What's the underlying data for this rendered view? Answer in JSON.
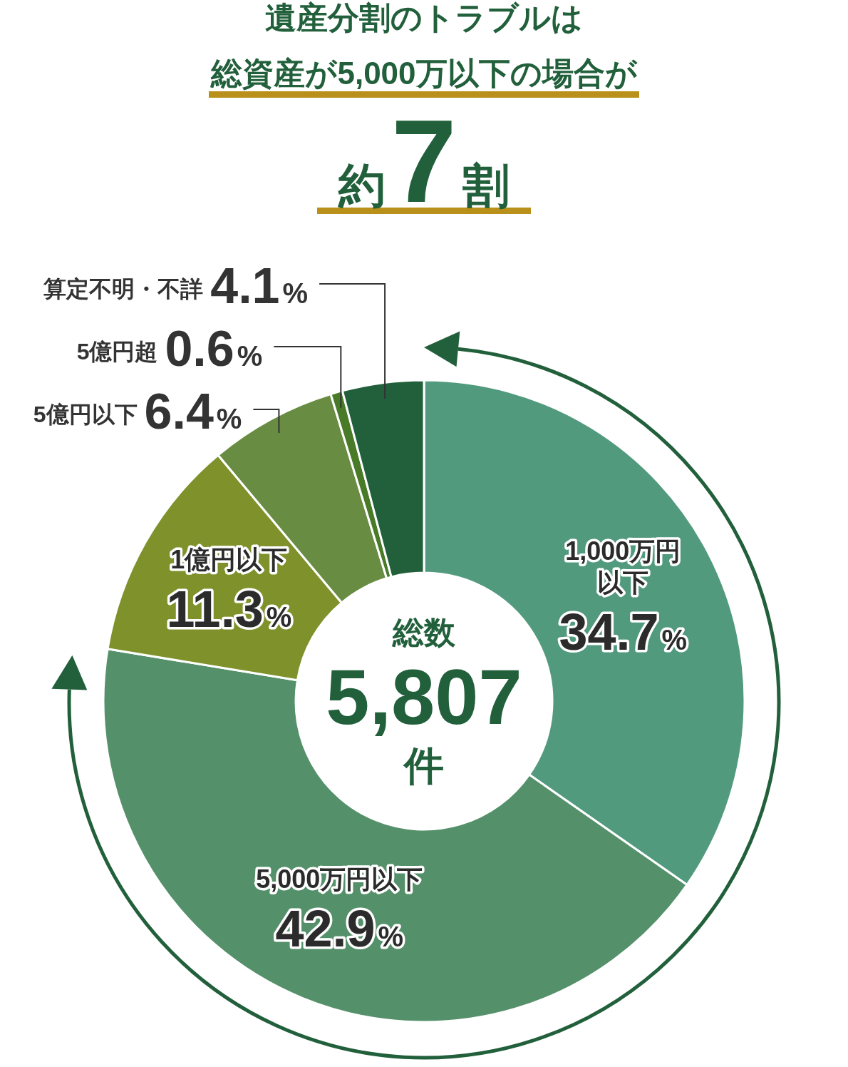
{
  "chart_data": {
    "type": "donut",
    "title": "遺産分割のトラブルは",
    "subtitle": "総資産が5,000万以下の場合が",
    "categories": [
      "1,000万円以下",
      "5,000万円以下",
      "1億円以下",
      "5億円以下",
      "5億円超",
      "算定不明・不詳"
    ],
    "values": [
      34.7,
      42.9,
      11.3,
      6.4,
      0.6,
      4.1
    ],
    "colors": [
      "#529a7e",
      "#54906a",
      "#7f912b",
      "#678c42",
      "#487a28",
      "#22603c"
    ],
    "value_labels": [
      "34.7%",
      "42.9%",
      "11.3%",
      "6.4%",
      "0.6%",
      "4.1%"
    ],
    "annotations": [
      "約7割",
      "総数",
      "5,807",
      "件"
    ]
  }
}
